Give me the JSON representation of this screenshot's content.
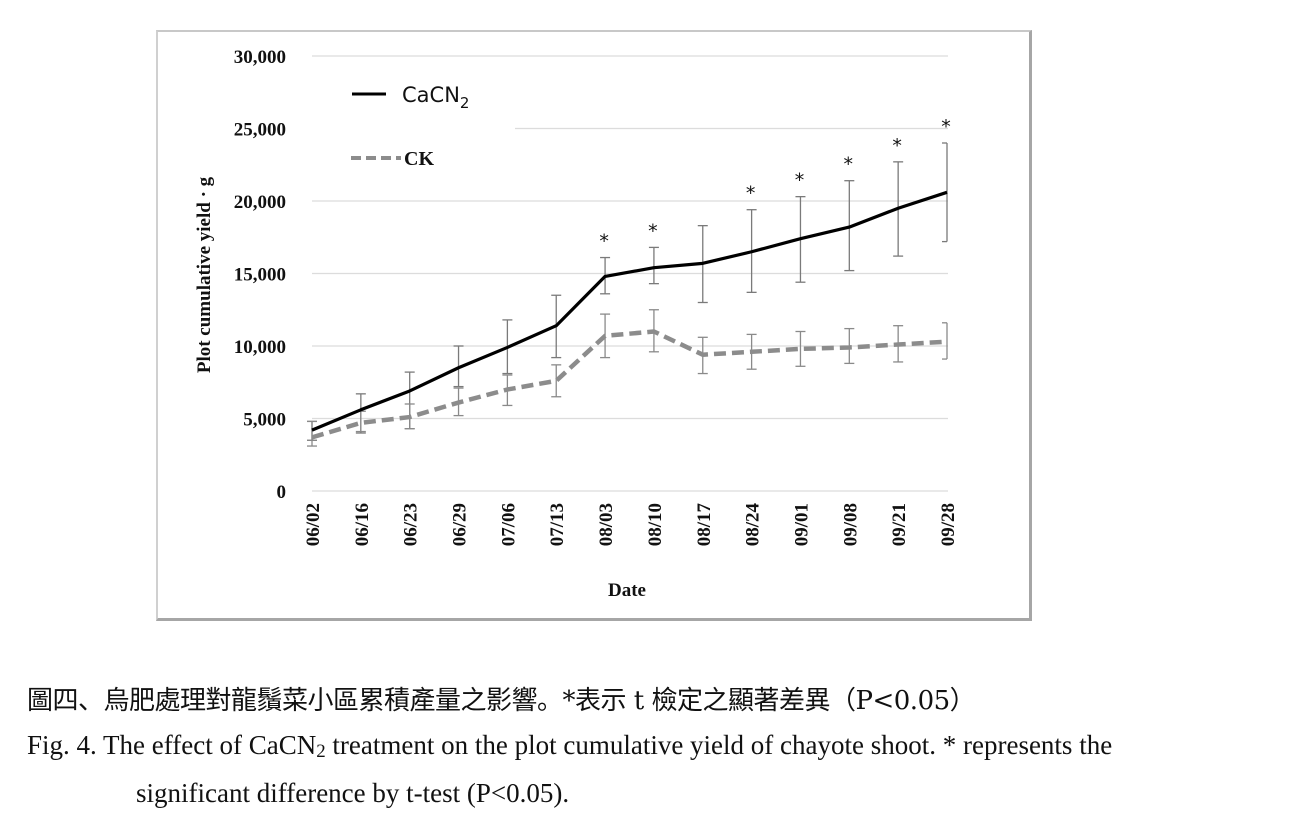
{
  "chart_data": {
    "type": "line",
    "title": "",
    "xlabel": "Date",
    "ylabel": "Plot cumulative yield · g",
    "ylim": [
      0,
      30000
    ],
    "yticks": [
      0,
      5000,
      10000,
      15000,
      20000,
      25000,
      30000
    ],
    "ytick_labels": [
      "0",
      "5,000",
      "10,000",
      "15,000",
      "20,000",
      "25,000",
      "30,000"
    ],
    "grid": true,
    "legend_position": "top-left",
    "categories": [
      "06/02",
      "06/16",
      "06/23",
      "06/29",
      "07/06",
      "07/13",
      "08/03",
      "08/10",
      "08/17",
      "08/24",
      "09/01",
      "09/08",
      "09/21",
      "09/28"
    ],
    "series": [
      {
        "name": "CaCN2",
        "legend_main": "CaCN",
        "legend_sub": "2",
        "style": "solid",
        "color": "#000000",
        "values": [
          4200,
          5600,
          6900,
          8500,
          9900,
          11400,
          14800,
          15400,
          15700,
          16500,
          17400,
          18200,
          19500,
          20600
        ],
        "error_upper": [
          4800,
          6700,
          8200,
          10000,
          11800,
          13500,
          16100,
          16800,
          18300,
          19400,
          20300,
          21400,
          22700,
          24000
        ],
        "error_lower": [
          3500,
          4000,
          4300,
          7200,
          8100,
          9200,
          13600,
          14300,
          13000,
          13700,
          14400,
          15200,
          16200,
          17200
        ]
      },
      {
        "name": "CK",
        "style": "dashed",
        "color": "#8c8c8c",
        "values": [
          3700,
          4700,
          5100,
          6100,
          7000,
          7600,
          10700,
          11000,
          9400,
          9600,
          9800,
          9900,
          10100,
          10300
        ],
        "error_upper": [
          4800,
          5500,
          6000,
          7100,
          8000,
          8700,
          12200,
          12500,
          10600,
          10800,
          11000,
          11200,
          11400,
          11600
        ],
        "error_lower": [
          3100,
          4100,
          4300,
          5200,
          5900,
          6500,
          9200,
          9600,
          8100,
          8400,
          8600,
          8800,
          8900,
          9100
        ]
      }
    ],
    "significance_marker": "*",
    "significant_categories": [
      "08/03",
      "08/10",
      "08/24",
      "09/01",
      "09/08",
      "09/21",
      "09/28"
    ]
  },
  "caption": {
    "zh": "圖四、烏肥處理對龍鬚菜小區累積產量之影響。*表示 t 檢定之顯著差異（P<0.05）",
    "en_line1_before": "Fig. 4. The effect of CaCN",
    "en_sub": "2",
    "en_line1_after": " treatment on the plot cumulative yield of chayote shoot. * represents the",
    "en_line2": "significant difference by t-test (P<0.05)."
  }
}
